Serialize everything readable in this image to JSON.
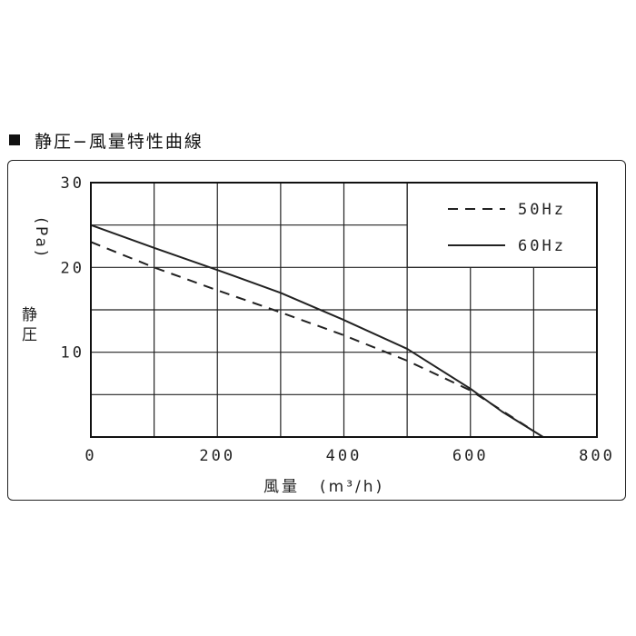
{
  "header": {
    "title": "静圧−風量特性曲線",
    "bullet_icon": "square-bullet-icon"
  },
  "chart_data": {
    "type": "line",
    "title": "静圧−風量特性曲線",
    "xlabel_main": "風量",
    "xlabel_unit": "(m³/h)",
    "ylabel_main": "静圧",
    "ylabel_unit": "(Pa)",
    "xlim": [
      0,
      800
    ],
    "ylim": [
      0,
      30
    ],
    "x_grid": [
      0,
      100,
      200,
      300,
      400,
      500,
      600,
      700,
      800
    ],
    "y_grid": [
      0,
      5,
      10,
      15,
      20,
      25,
      30
    ],
    "x_ticks": [
      {
        "value": 0,
        "label": "0"
      },
      {
        "value": 200,
        "label": "200"
      },
      {
        "value": 400,
        "label": "400"
      },
      {
        "value": 600,
        "label": "600"
      },
      {
        "value": 800,
        "label": "800"
      }
    ],
    "y_ticks": [
      {
        "value": 10,
        "label": "10"
      },
      {
        "value": 20,
        "label": "20"
      },
      {
        "value": 30,
        "label": "30"
      }
    ],
    "grid": true,
    "legend_position": "top-right",
    "series": [
      {
        "name": "50Hz",
        "style": "dashed",
        "color": "#222222",
        "x": [
          0,
          100,
          200,
          300,
          400,
          500,
          600,
          690
        ],
        "y": [
          23,
          20,
          17.3,
          14.7,
          12,
          9,
          5.5,
          1.2
        ]
      },
      {
        "name": "60Hz",
        "style": "solid",
        "color": "#222222",
        "x": [
          0,
          100,
          200,
          300,
          400,
          500,
          600,
          650,
          715
        ],
        "y": [
          25,
          22.3,
          19.7,
          17,
          13.8,
          10.4,
          5.7,
          3,
          0
        ]
      }
    ]
  }
}
